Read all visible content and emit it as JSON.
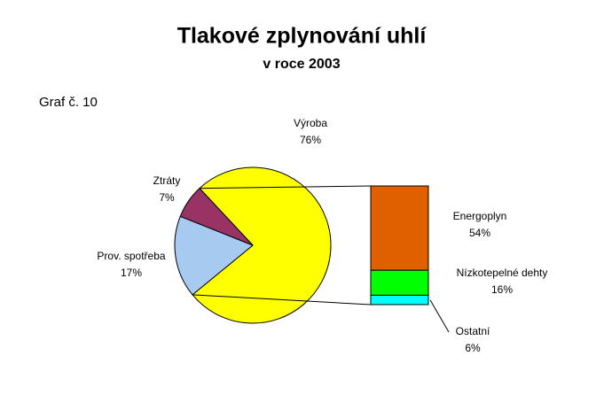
{
  "chart_data": {
    "type": "bar-of-pie",
    "title": "Tlakové zplynování uhlí",
    "subtitle": "v roce 2003",
    "note": "Graf č. 10",
    "categories": [
      "Výroba",
      "Prov. spotřeba",
      "Ztráty"
    ],
    "values": [
      76,
      17,
      7
    ],
    "value_labels": [
      "76%",
      "17%",
      "7%"
    ],
    "colors": [
      "#ffff00",
      "#a6caf0",
      "#993366"
    ],
    "breakdown": {
      "categories": [
        "Energoplyn",
        "Nízkotepelné dehty",
        "Ostatní"
      ],
      "values": [
        54,
        16,
        6
      ],
      "value_labels": [
        "54%",
        "16%",
        "6%"
      ],
      "colors": [
        "#e06000",
        "#00ff00",
        "#00ffff"
      ]
    }
  }
}
